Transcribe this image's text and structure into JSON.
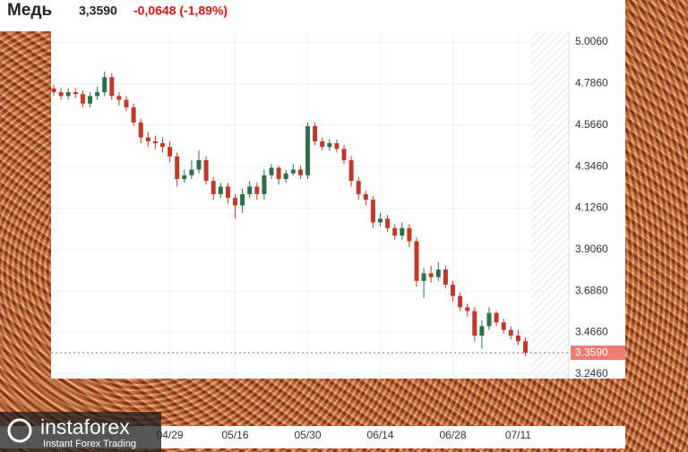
{
  "chart_data": {
    "type": "candlestick",
    "header": {
      "title": "Медь",
      "price": "3,3590",
      "change": "-0,0648 (-1,89%)"
    },
    "logo": {
      "name": "instaforex",
      "tagline": "Instant Forex Trading"
    },
    "categories": [
      null,
      null,
      null,
      null,
      null,
      null,
      null,
      null,
      null,
      null,
      null,
      null,
      null,
      null,
      null,
      null,
      "04/29",
      null,
      null,
      null,
      null,
      null,
      null,
      null,
      null,
      "05/16",
      null,
      null,
      null,
      null,
      null,
      null,
      null,
      null,
      null,
      "05/30",
      null,
      null,
      null,
      null,
      null,
      null,
      null,
      null,
      null,
      "06/14",
      null,
      null,
      null,
      null,
      null,
      null,
      null,
      null,
      null,
      "06/28",
      null,
      null,
      null,
      null,
      null,
      null,
      null,
      null,
      "07/11",
      null
    ],
    "series": [
      {
        "name": "open",
        "values": [
          4.76,
          4.74,
          4.72,
          4.74,
          4.73,
          4.68,
          4.72,
          4.74,
          4.82,
          4.72,
          4.7,
          4.66,
          4.58,
          4.5,
          4.48,
          4.47,
          4.45,
          4.4,
          4.28,
          4.3,
          4.33,
          4.38,
          4.27,
          4.2,
          4.24,
          4.18,
          4.14,
          4.2,
          4.24,
          4.2,
          4.3,
          4.34,
          4.28,
          4.31,
          4.33,
          4.3,
          4.56,
          4.48,
          4.45,
          4.47,
          4.44,
          4.38,
          4.27,
          4.2,
          4.17,
          4.05,
          4.07,
          4.02,
          3.98,
          4.02,
          3.95,
          3.74,
          3.78,
          3.76,
          3.8,
          3.72,
          3.66,
          3.6,
          3.58,
          3.45,
          3.5,
          3.57,
          3.52,
          3.48,
          3.45,
          3.42
        ]
      },
      {
        "name": "high",
        "values": [
          4.78,
          4.76,
          4.76,
          4.76,
          4.75,
          4.74,
          4.77,
          4.85,
          4.84,
          4.74,
          4.72,
          4.68,
          4.6,
          4.53,
          4.51,
          4.5,
          4.48,
          4.42,
          4.33,
          4.38,
          4.43,
          4.4,
          4.29,
          4.26,
          4.26,
          4.2,
          4.23,
          4.27,
          4.26,
          4.33,
          4.36,
          4.35,
          4.33,
          4.36,
          4.35,
          4.58,
          4.58,
          4.5,
          4.49,
          4.49,
          4.46,
          4.4,
          4.29,
          4.22,
          4.19,
          4.1,
          4.09,
          4.04,
          4.05,
          4.04,
          3.97,
          3.81,
          3.82,
          3.84,
          3.82,
          3.74,
          3.68,
          3.62,
          3.6,
          3.53,
          3.6,
          3.58,
          3.54,
          3.5,
          3.48,
          3.44
        ]
      },
      {
        "name": "low",
        "values": [
          4.72,
          4.7,
          4.7,
          4.71,
          4.66,
          4.66,
          4.7,
          4.72,
          4.7,
          4.67,
          4.64,
          4.56,
          4.47,
          4.45,
          4.44,
          4.42,
          4.37,
          4.24,
          4.26,
          4.28,
          4.31,
          4.25,
          4.17,
          4.18,
          4.15,
          4.07,
          4.1,
          4.18,
          4.17,
          4.17,
          4.28,
          4.25,
          4.26,
          4.3,
          4.28,
          4.28,
          4.46,
          4.43,
          4.43,
          4.42,
          4.36,
          4.24,
          4.17,
          4.14,
          4.02,
          4.03,
          4.0,
          3.96,
          3.96,
          3.92,
          3.71,
          3.65,
          3.73,
          3.74,
          3.7,
          3.63,
          3.58,
          3.55,
          3.42,
          3.38,
          3.48,
          3.5,
          3.46,
          3.43,
          3.4,
          3.34
        ]
      },
      {
        "name": "close",
        "values": [
          4.74,
          4.72,
          4.74,
          4.73,
          4.68,
          4.72,
          4.74,
          4.82,
          4.72,
          4.7,
          4.66,
          4.58,
          4.5,
          4.48,
          4.47,
          4.45,
          4.4,
          4.28,
          4.3,
          4.33,
          4.38,
          4.27,
          4.2,
          4.24,
          4.18,
          4.14,
          4.2,
          4.24,
          4.2,
          4.3,
          4.34,
          4.28,
          4.31,
          4.33,
          4.3,
          4.56,
          4.48,
          4.45,
          4.47,
          4.44,
          4.38,
          4.27,
          4.2,
          4.17,
          4.05,
          4.07,
          4.02,
          3.98,
          4.02,
          3.95,
          3.74,
          3.78,
          3.76,
          3.8,
          3.72,
          3.66,
          3.6,
          3.58,
          3.45,
          3.5,
          3.57,
          3.52,
          3.48,
          3.45,
          3.42,
          3.359
        ]
      }
    ],
    "up_color": "#2f6e4f",
    "down_color": "#c0392b",
    "ylim": [
      3.222,
      5.063
    ],
    "yticks": [
      {
        "value": 3.246,
        "label": "3.2460"
      },
      {
        "value": 3.466,
        "label": "3.4660"
      },
      {
        "value": 3.686,
        "label": "3.6860"
      },
      {
        "value": 3.906,
        "label": "3.9060"
      },
      {
        "value": 4.126,
        "label": "4.1260"
      },
      {
        "value": 4.346,
        "label": "4.3460"
      },
      {
        "value": 4.566,
        "label": "4.5660"
      },
      {
        "value": 4.786,
        "label": "4.7860"
      },
      {
        "value": 5.006,
        "label": "5.0060"
      }
    ],
    "last_price": {
      "value": 3.359,
      "label": "3.3590"
    },
    "grid": true
  }
}
